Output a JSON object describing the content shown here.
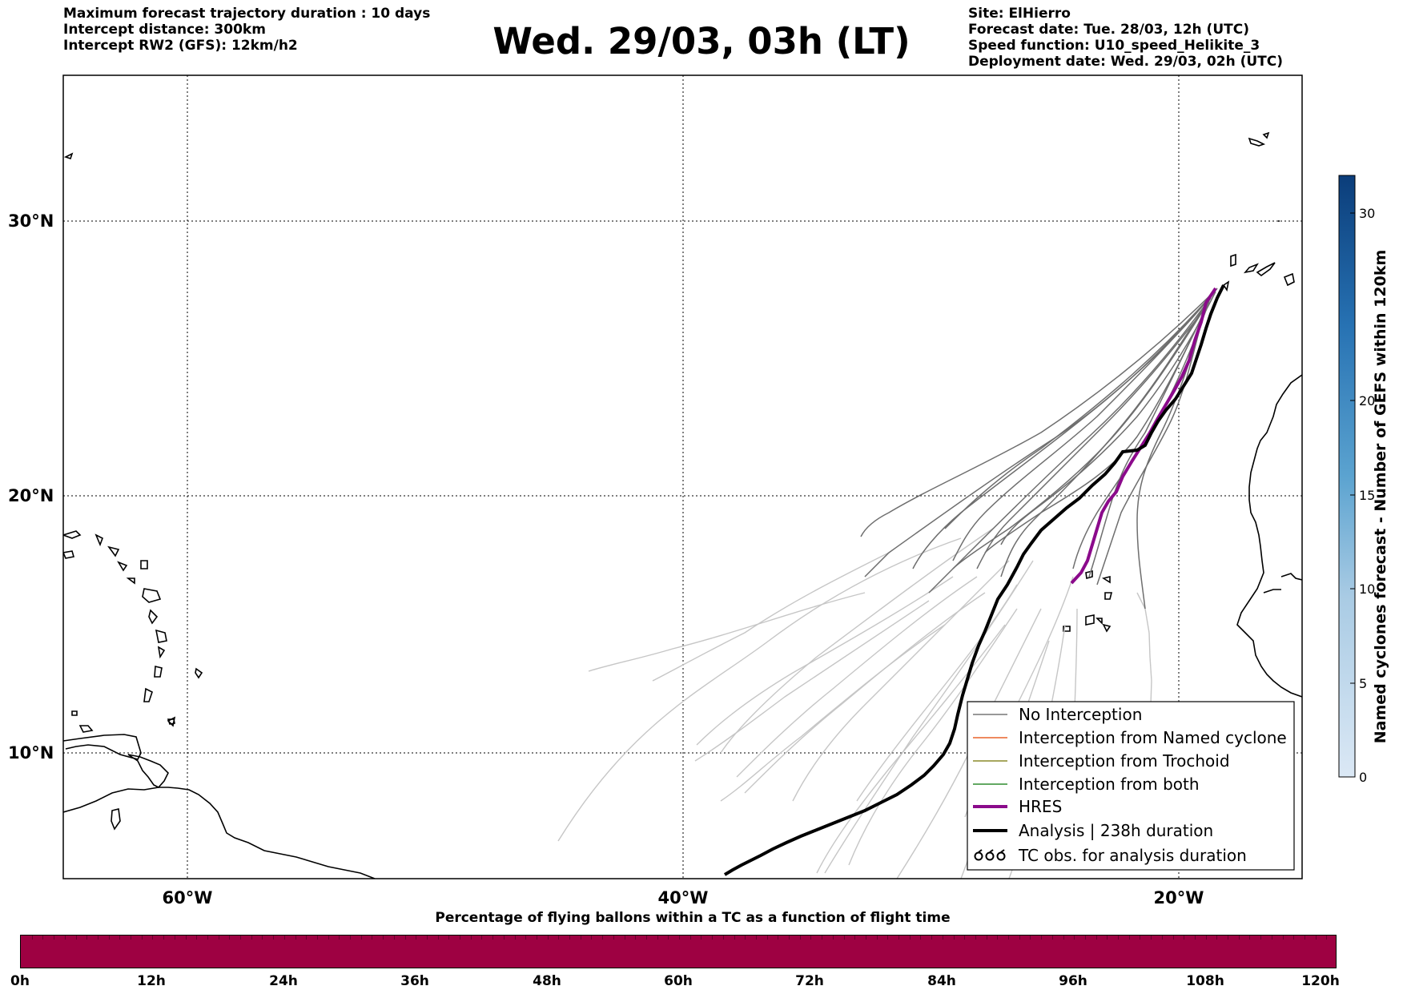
{
  "header_left": [
    "Maximum forecast trajectory duration : 10 days",
    "Intercept distance: 300km",
    "Intercept RW2 (GFS):  12km/h2"
  ],
  "title": "Wed. 29/03, 03h (LT)",
  "header_right": [
    "Site: ElHierro",
    "Forecast date: Tue. 28/03, 12h (UTC)",
    "Speed function: U10_speed_Helikite_3",
    "Deployment date: Wed. 29/03, 02h (UTC)"
  ],
  "map": {
    "lon_labels": [
      "60°W",
      "40°W",
      "20°W"
    ],
    "lat_labels": [
      "30°N",
      "20°N",
      "10°N"
    ],
    "grid": "dotted"
  },
  "legend": {
    "items": [
      {
        "label": "No Interception",
        "color": "#777777",
        "style": "thin"
      },
      {
        "label": "Interception from Named cyclone",
        "color": "#e8632b",
        "style": "thin"
      },
      {
        "label": "Interception from Trochoid",
        "color": "#8a8a2a",
        "style": "thin"
      },
      {
        "label": "Interception from both",
        "color": "#2e8b2e",
        "style": "thin"
      },
      {
        "label": "HRES",
        "color": "#8b0a8b",
        "style": "thick"
      },
      {
        "label": "Analysis | 238h duration",
        "color": "#000000",
        "style": "thick"
      },
      {
        "label": "TC obs. for analysis duration",
        "color": "#000000",
        "style": "symbol",
        "symbol": "໠໠໠"
      }
    ]
  },
  "cyclone_colorbar": {
    "title": "Named cyclones forecast - Number of GEFS within 120km",
    "ticks": [
      "0",
      "5",
      "10",
      "15",
      "20",
      "30"
    ],
    "min": 0,
    "max": 32
  },
  "flight_bar": {
    "title": "Percentage of flying ballons within a TC as a function of flight time",
    "color": "#9e0142",
    "ticks": [
      "0h",
      "12h",
      "24h",
      "36h",
      "48h",
      "60h",
      "72h",
      "84h",
      "96h",
      "108h",
      "120h"
    ]
  }
}
